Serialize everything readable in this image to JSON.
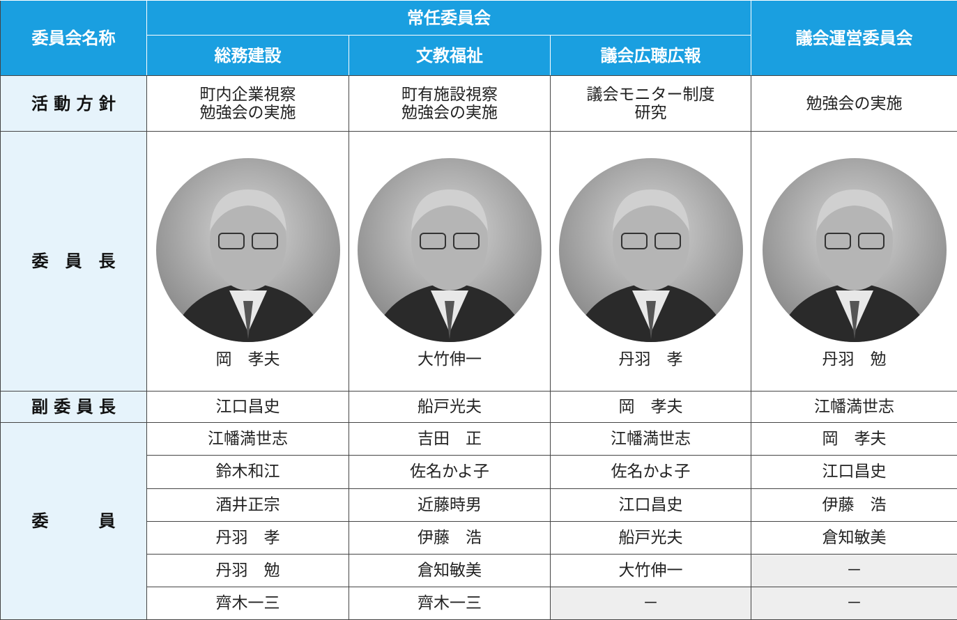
{
  "header": {
    "name_label": "委員会名称",
    "standing_label": "常任委員会",
    "steering": "議会運営委員会",
    "subcommittees": [
      "総務建設",
      "文教福祉",
      "議会広聴広報"
    ]
  },
  "policy": {
    "label": "活 動 方 針",
    "cells": [
      [
        "町内企業視察",
        "勉強会の実施"
      ],
      [
        "町有施設視察",
        "勉強会の実施"
      ],
      [
        "議会モニター制度",
        "研究"
      ],
      [
        "勉強会の実施"
      ]
    ]
  },
  "chair": {
    "label": "委　員　長",
    "cells": [
      "岡　孝夫",
      "大竹伸一",
      "丹羽　孝",
      "丹羽　勉"
    ]
  },
  "vice_chair": {
    "label": "副 委 員 長",
    "cells": [
      "江口昌史",
      "船戸光夫",
      "岡　孝夫",
      "江幡満世志"
    ]
  },
  "members": {
    "label": "委　　　員",
    "rows": [
      [
        "江幡満世志",
        "吉田　正",
        "江幡満世志",
        "岡　孝夫"
      ],
      [
        "鈴木和江",
        "佐名かよ子",
        "佐名かよ子",
        "江口昌史"
      ],
      [
        "酒井正宗",
        "近藤時男",
        "江口昌史",
        "伊藤　浩"
      ],
      [
        "丹羽　孝",
        "伊藤　浩",
        "船戸光夫",
        "倉知敏美"
      ],
      [
        "丹羽　勉",
        "倉知敏美",
        "大竹伸一",
        "－"
      ],
      [
        "齊木一三",
        "齊木一三",
        "－",
        "－"
      ]
    ]
  }
}
